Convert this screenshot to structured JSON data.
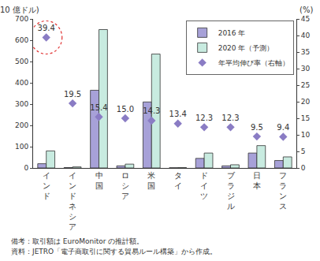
{
  "chart_data": {
    "type": "bar",
    "y_label": "(10 億ドル)",
    "y2_label": "(%)",
    "categories": [
      "インド",
      "インドネシア",
      "中国",
      "ロシア",
      "米国",
      "タイ",
      "ドイツ",
      "ブラジル",
      "日本",
      "フランス"
    ],
    "series": [
      {
        "name": "2016 年",
        "color": "#a7a1d8",
        "values": [
          20,
          2,
          365,
          10,
          310,
          1,
          45,
          10,
          70,
          35
        ]
      },
      {
        "name": "2020 年（予測）",
        "color": "#c8ebe0",
        "values": [
          80,
          5,
          650,
          18,
          535,
          2,
          70,
          15,
          105,
          52
        ]
      },
      {
        "name": "年平均伸び率（右軸）",
        "type": "scatter",
        "marker": "diamond",
        "color": "#8a7cc4",
        "axis": "y2",
        "values": [
          39.4,
          19.5,
          15.4,
          15.0,
          14.3,
          13.4,
          12.3,
          12.3,
          9.5,
          9.4
        ],
        "value_labels": [
          "39.4",
          "19.5",
          "15.4",
          "15.0",
          "14.3",
          "13.4",
          "12.3",
          "12.3",
          "9.5",
          "9.4"
        ],
        "data_labels": true
      }
    ],
    "ylim": [
      0,
      700
    ],
    "yticks": [
      0,
      100,
      200,
      300,
      400,
      500,
      600,
      700
    ],
    "y2lim": [
      0,
      45
    ],
    "y2ticks": [
      0,
      5,
      10,
      15,
      20,
      25,
      30,
      35,
      40,
      45
    ],
    "grid": false,
    "legend": "upper right",
    "annotations": [
      "備考：取引額は EuroMonitor の推計額。",
      "資料：JETRO「電子商取引に関する貿易ルール構築」から作成。"
    ]
  }
}
